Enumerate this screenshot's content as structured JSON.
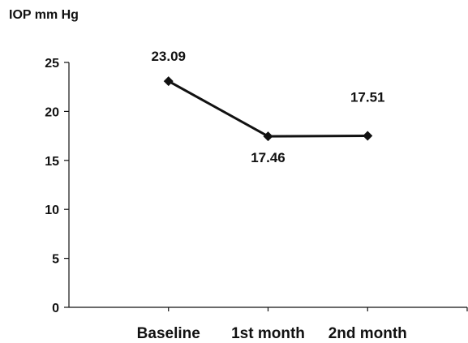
{
  "chart_data": {
    "type": "line",
    "title": "",
    "ylabel": "IOP mm Hg",
    "xlabel": "",
    "categories": [
      "Baseline",
      "1st month",
      "2nd month"
    ],
    "series": [
      {
        "values": [
          23.09,
          17.46,
          17.51
        ]
      }
    ],
    "data_labels": [
      "23.09",
      "17.46",
      "17.51"
    ],
    "ylim": [
      0,
      25
    ],
    "yticks": [
      0,
      5,
      10,
      15,
      20,
      25
    ],
    "grid": false,
    "legend": "none",
    "line_color": "#111111",
    "marker": "diamond"
  }
}
